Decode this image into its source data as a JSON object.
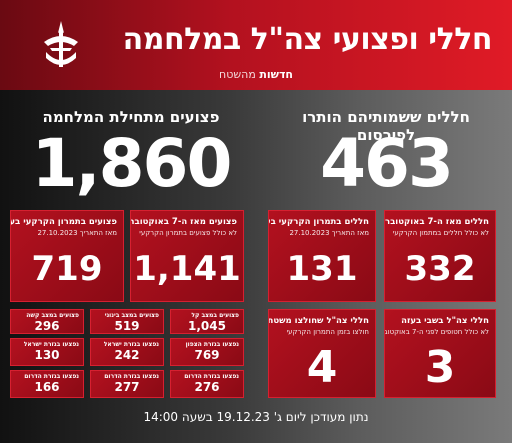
{
  "header": {
    "title": "חללי ופצועי צה\"ל במלחמה",
    "brand_bold": "חדשות",
    "brand_light": "מהשטח"
  },
  "fallen": {
    "title": "חללים ששמותיהם הותרו לפירסום",
    "total": "463",
    "since_oct7": {
      "title": "חללים מאז ה-7 באוקטובר",
      "sub": "לא כולל חללים במתמון הקרקעי",
      "value": "332"
    },
    "ground": {
      "title": "חללים בתמרון הקרקעי בעזה",
      "sub": "מאז התאריך 27.10.2023",
      "value": "131"
    },
    "captivity": {
      "title": "חללי צה\"ל בשבי בעזה",
      "sub": "לא כולל חטופים לפני ה-7 באוקטובר",
      "value": "3"
    },
    "friendly_fire": {
      "title": "חללי צה\"ל שחולצו משטחי",
      "sub": "חולצו בזמן התמרון הקרקעי",
      "value": "4"
    }
  },
  "wounded": {
    "title": "פצועים מתחילת המלחמה",
    "total": "1,860",
    "since_oct7": {
      "title": "פצועים מאז ה-7 באוקטובר",
      "sub": "לא כולל פצועים בתמרון הקרקעי",
      "value": "1,141"
    },
    "ground": {
      "title": "פצועים בתמרון הקרקעי בעזה",
      "sub": "מאז התאריך 27.10.2023",
      "value": "719"
    },
    "breakdown": [
      {
        "label": "פצועים במצב קל",
        "value": "1,045"
      },
      {
        "label": "פצועים במצב בינוני",
        "value": "519"
      },
      {
        "label": "פצועים במצב קשה",
        "value": "296"
      },
      {
        "label": "נפצעו בגזרת הצפון",
        "value": "769"
      },
      {
        "label": "נפצעו בגזרת ישראל",
        "value": "242"
      },
      {
        "label": "נפצעו בגזרת ישראל",
        "value": "130"
      },
      {
        "label": "נפצעו בגזרת הדרום",
        "value": "276"
      },
      {
        "label": "נפצעו בגזרת הדרום",
        "value": "277"
      },
      {
        "label": "נפצעו בגזרת הדרום",
        "value": "166"
      }
    ]
  },
  "footer": "נתון מעודכן ליום ג' 19.12.23 בשעה 14:00",
  "colors": {
    "accent": "#b3111f",
    "dark": "#6a0a12"
  }
}
